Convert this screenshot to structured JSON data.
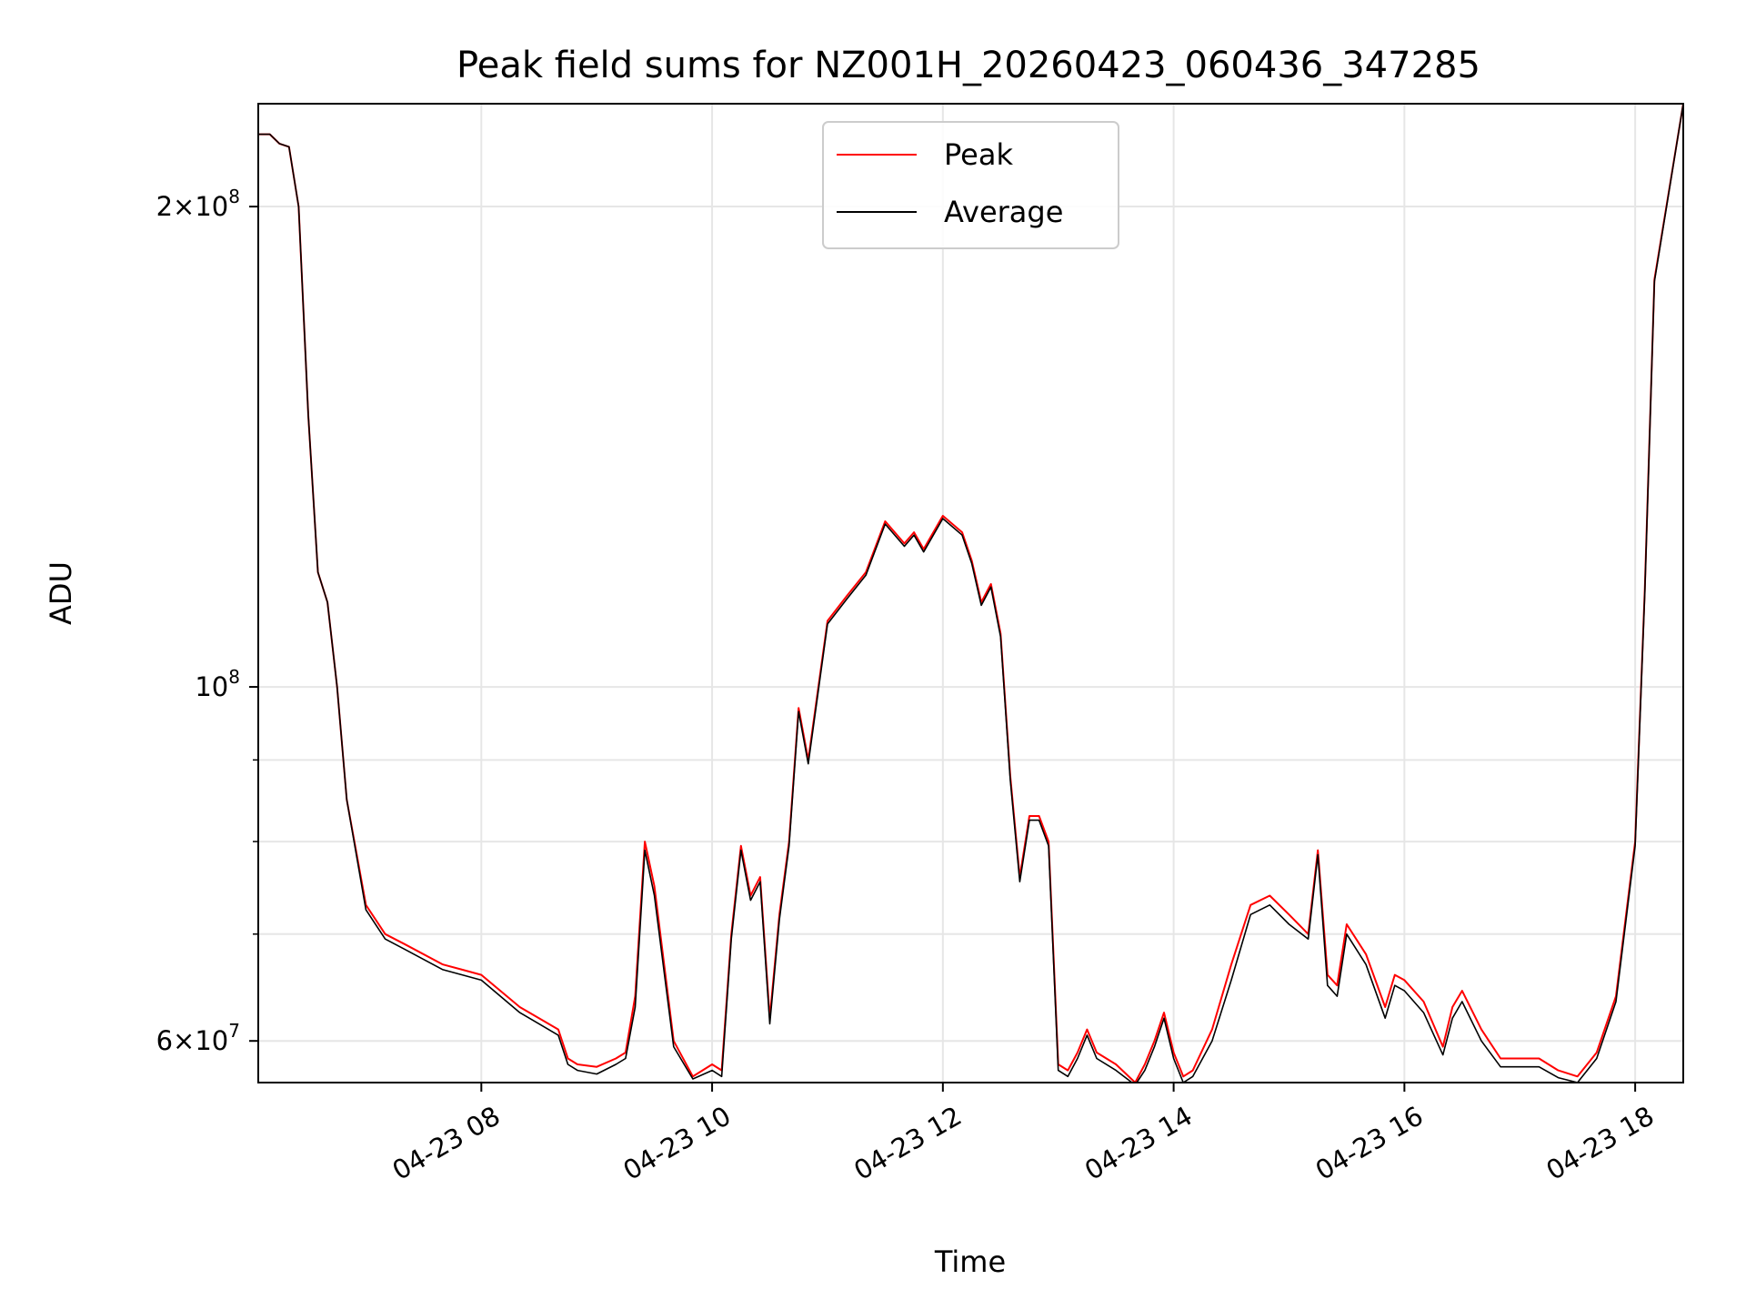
{
  "chart_data": {
    "type": "line",
    "title": "Peak field sums for NZ001H_20260423_060436_347285",
    "xlabel": "Time",
    "ylabel": "ADU",
    "x_scale": "time",
    "y_scale": "log",
    "xlim": [
      "2026-04-23 06:04",
      "2026-04-23 18:25"
    ],
    "ylim": [
      56500000,
      232000000
    ],
    "grid": true,
    "legend_placement": "upper center",
    "x_ticks": [
      {
        "value": "2026-04-23 08:00",
        "label": "04-23 08"
      },
      {
        "value": "2026-04-23 10:00",
        "label": "04-23 10"
      },
      {
        "value": "2026-04-23 12:00",
        "label": "04-23 12"
      },
      {
        "value": "2026-04-23 14:00",
        "label": "04-23 14"
      },
      {
        "value": "2026-04-23 16:00",
        "label": "04-23 16"
      },
      {
        "value": "2026-04-23 18:00",
        "label": "04-23 18"
      }
    ],
    "y_major_ticks": [
      {
        "value": 60000000,
        "label_mantissa": "6",
        "label_base": "10",
        "label_exp": "7"
      },
      {
        "value": 100000000,
        "label_mantissa": "",
        "label_base": "10",
        "label_exp": "8"
      },
      {
        "value": 200000000,
        "label_mantissa": "2",
        "label_base": "10",
        "label_exp": "8"
      }
    ],
    "y_minor_ticks": [
      70000000,
      80000000,
      90000000
    ],
    "x": [
      "06:04",
      "06:10",
      "06:15",
      "06:20",
      "06:25",
      "06:30",
      "06:35",
      "06:40",
      "06:45",
      "06:50",
      "07:00",
      "07:10",
      "07:20",
      "07:40",
      "07:50",
      "08:00",
      "08:20",
      "08:30",
      "08:40",
      "08:45",
      "08:50",
      "09:00",
      "09:10",
      "09:15",
      "09:20",
      "09:25",
      "09:30",
      "09:40",
      "09:50",
      "10:00",
      "10:05",
      "10:10",
      "10:15",
      "10:20",
      "10:25",
      "10:30",
      "10:35",
      "10:40",
      "10:45",
      "10:50",
      "11:00",
      "11:10",
      "11:20",
      "11:30",
      "11:40",
      "11:45",
      "11:50",
      "12:00",
      "12:10",
      "12:15",
      "12:20",
      "12:25",
      "12:30",
      "12:35",
      "12:40",
      "12:45",
      "12:50",
      "12:55",
      "13:00",
      "13:05",
      "13:10",
      "13:15",
      "13:20",
      "13:30",
      "13:40",
      "13:45",
      "13:50",
      "13:55",
      "14:00",
      "14:05",
      "14:10",
      "14:20",
      "14:30",
      "14:40",
      "14:50",
      "15:00",
      "15:10",
      "15:15",
      "15:20",
      "15:25",
      "15:30",
      "15:40",
      "15:50",
      "15:55",
      "16:00",
      "16:10",
      "16:20",
      "16:25",
      "16:30",
      "16:40",
      "16:50",
      "17:00",
      "17:10",
      "17:20",
      "17:30",
      "17:40",
      "17:50",
      "18:00",
      "18:05",
      "18:10",
      "18:25"
    ],
    "series": [
      {
        "name": "Peak",
        "color": "#ff0000",
        "values": [
          222000000,
          222000000,
          219000000,
          218000000,
          200000000,
          148000000,
          118000000,
          113000000,
          100000000,
          85000000,
          73000000,
          70000000,
          69000000,
          67000000,
          66500000,
          66000000,
          63000000,
          62000000,
          61000000,
          58500000,
          58000000,
          57800000,
          58500000,
          59000000,
          64000000,
          80000000,
          75000000,
          60000000,
          57000000,
          58000000,
          57500000,
          70000000,
          79500000,
          74000000,
          76000000,
          62000000,
          72000000,
          80000000,
          97000000,
          90000000,
          110000000,
          114000000,
          118000000,
          127000000,
          123000000,
          125000000,
          122000000,
          128000000,
          125000000,
          120000000,
          113000000,
          116000000,
          108000000,
          88000000,
          76000000,
          83000000,
          83000000,
          80000000,
          58000000,
          57500000,
          59000000,
          61000000,
          59000000,
          58000000,
          56500000,
          58000000,
          60000000,
          62500000,
          59000000,
          57000000,
          57500000,
          61000000,
          67000000,
          73000000,
          74000000,
          72000000,
          70000000,
          79000000,
          66000000,
          65000000,
          71000000,
          68000000,
          63000000,
          66000000,
          65500000,
          63500000,
          59500000,
          63000000,
          64500000,
          61000000,
          58500000,
          58500000,
          58500000,
          57500000,
          57000000,
          59000000,
          64000000,
          80000000,
          115000000,
          180000000,
          232000000
        ]
      },
      {
        "name": "Average",
        "color": "#000000",
        "values": [
          222000000,
          222000000,
          219000000,
          218000000,
          200000000,
          148000000,
          118000000,
          113000000,
          100000000,
          85000000,
          72500000,
          69500000,
          68500000,
          66500000,
          66000000,
          65500000,
          62500000,
          61500000,
          60500000,
          58000000,
          57500000,
          57200000,
          58000000,
          58500000,
          63000000,
          79000000,
          74000000,
          59500000,
          56800000,
          57500000,
          57000000,
          69500000,
          79000000,
          73500000,
          75500000,
          61500000,
          71500000,
          79500000,
          96500000,
          89500000,
          109500000,
          113500000,
          117500000,
          126500000,
          122500000,
          124500000,
          121500000,
          127500000,
          124500000,
          119500000,
          112500000,
          115500000,
          107500000,
          87500000,
          75500000,
          82500000,
          82500000,
          79500000,
          57500000,
          57000000,
          58500000,
          60500000,
          58500000,
          57500000,
          56300000,
          57500000,
          59500000,
          62000000,
          58500000,
          56500000,
          57000000,
          60000000,
          65500000,
          72000000,
          73000000,
          71000000,
          69500000,
          78500000,
          65000000,
          64000000,
          70000000,
          67000000,
          62000000,
          65000000,
          64500000,
          62500000,
          58800000,
          62000000,
          63500000,
          60000000,
          57800000,
          57800000,
          57800000,
          56900000,
          56500000,
          58500000,
          63500000,
          79500000,
          114500000,
          179500000,
          232000000
        ]
      }
    ]
  }
}
